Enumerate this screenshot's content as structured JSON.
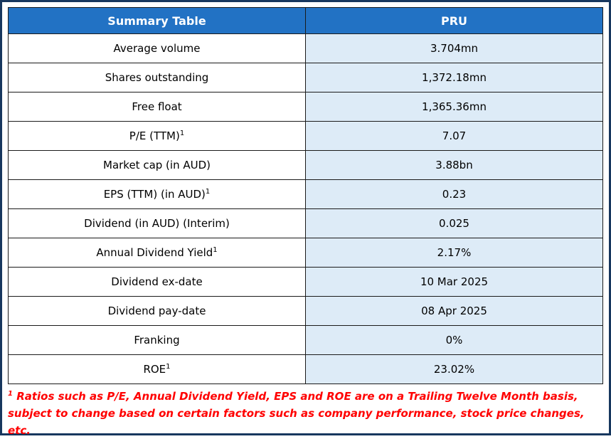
{
  "colors": {
    "header_bg": "#2272C4",
    "header_text": "#FFFFFF",
    "value_cell_bg": "#DDEBF7",
    "grid_border": "#1A1A1A",
    "outer_border": "#17375E",
    "footnote_text": "#FF0000"
  },
  "table": {
    "header": {
      "left": "Summary Table",
      "right": "PRU"
    },
    "rows": [
      {
        "label": "Average volume",
        "value": "3.704mn"
      },
      {
        "label": "Shares outstanding",
        "value": "1,372.18mn"
      },
      {
        "label": "Free float",
        "value": "1,365.36mn"
      },
      {
        "label": "P/E (TTM)",
        "sup": "1",
        "value": "7.07"
      },
      {
        "label": "Market cap (in AUD)",
        "value": "3.88bn"
      },
      {
        "label": "EPS (TTM) (in AUD)",
        "sup": "1",
        "value": "0.23"
      },
      {
        "label": "Dividend (in AUD) (Interim)",
        "value": "0.025"
      },
      {
        "label": "Annual Dividend Yield",
        "sup": "1",
        "value": "2.17%"
      },
      {
        "label": "Dividend ex-date",
        "value": "10 Mar 2025"
      },
      {
        "label": "Dividend pay-date",
        "value": "08 Apr 2025"
      },
      {
        "label": "Franking",
        "value": "0%"
      },
      {
        "label": "ROE",
        "sup": "1",
        "value": "23.02%"
      }
    ]
  },
  "footnote": {
    "sup": "1",
    "text": " Ratios such as P/E, Annual Dividend Yield, EPS and ROE are on a Trailing Twelve Month basis, subject to change based on certain factors such as company performance, stock price changes, etc."
  }
}
